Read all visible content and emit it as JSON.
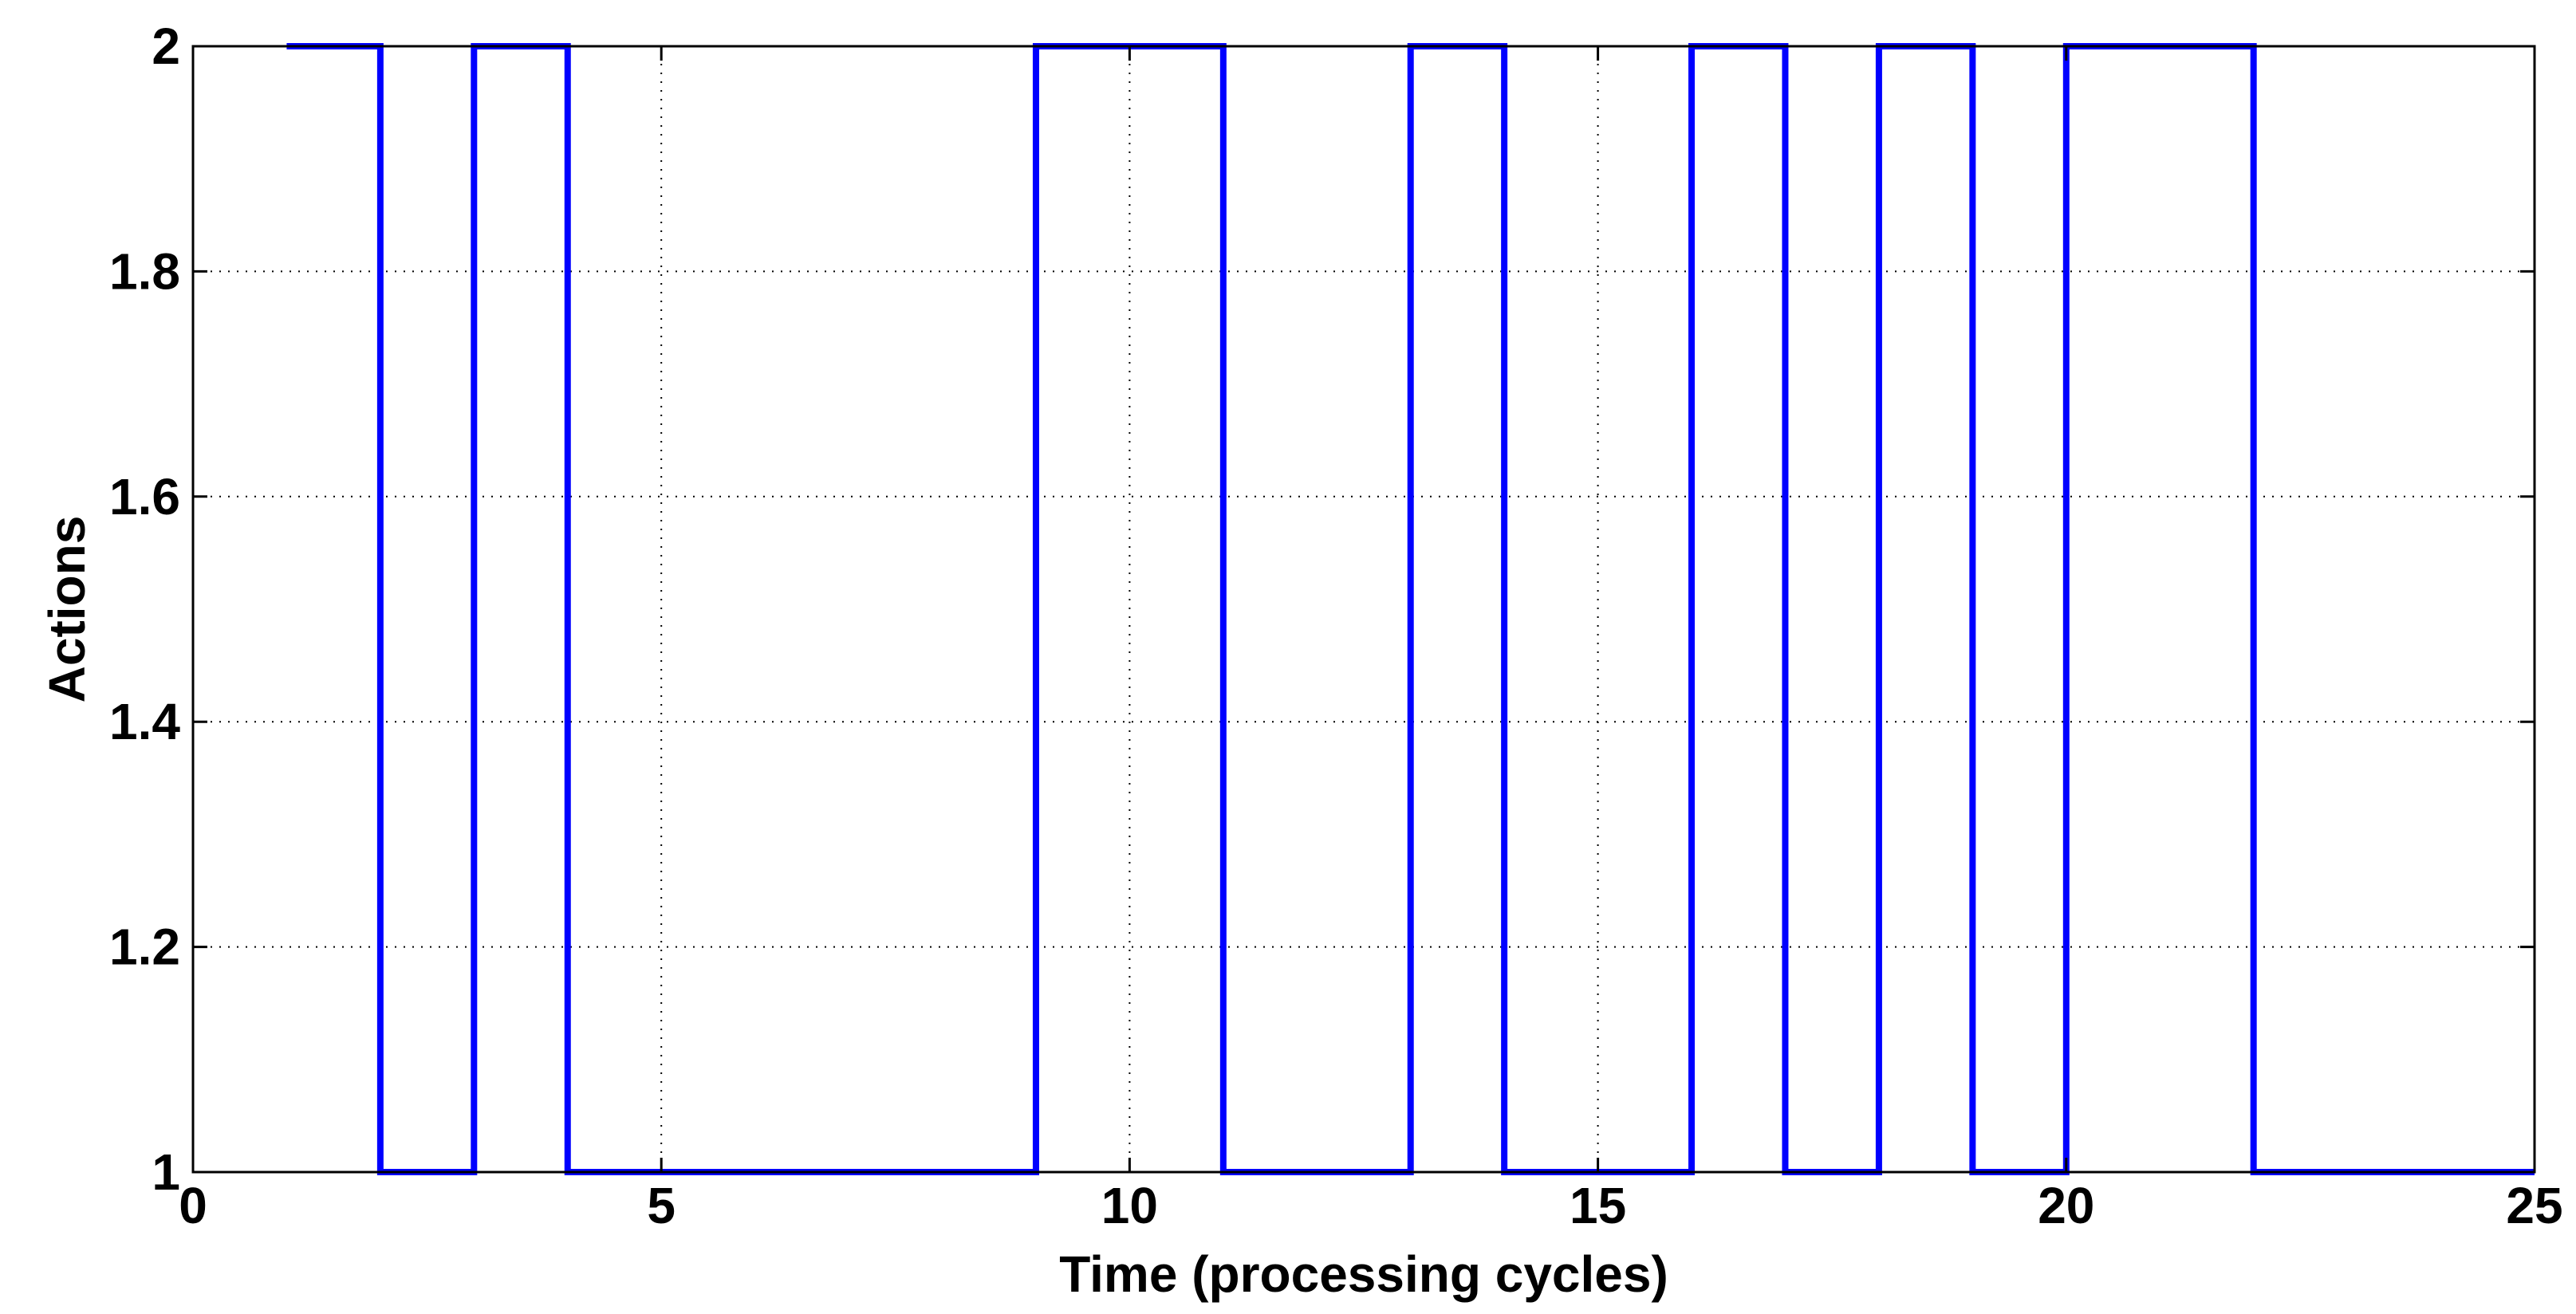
{
  "chart_data": {
    "type": "line",
    "step": true,
    "title": "",
    "xlabel": "Time (processing cycles)",
    "ylabel": "Actions",
    "xlim": [
      0,
      25
    ],
    "ylim": [
      1,
      2
    ],
    "xticks": [
      0,
      5,
      10,
      15,
      20,
      25
    ],
    "yticks": [
      1,
      1.2,
      1.4,
      1.6,
      1.8,
      2
    ],
    "ytick_labels": [
      "1",
      "1.2",
      "1.4",
      "1.6",
      "1.8",
      "2"
    ],
    "grid": true,
    "series": [
      {
        "color": "#0000ff",
        "x": [
          1,
          2,
          3,
          4,
          5,
          6,
          7,
          8,
          9,
          10,
          11,
          12,
          13,
          14,
          15,
          16,
          17,
          18,
          19,
          20,
          21,
          22,
          23,
          24,
          25
        ],
        "values": [
          2,
          1,
          2,
          1,
          1,
          1,
          1,
          1,
          2,
          2,
          1,
          1,
          2,
          1,
          1,
          2,
          1,
          2,
          1,
          2,
          2,
          1,
          1,
          1,
          1
        ]
      }
    ]
  }
}
